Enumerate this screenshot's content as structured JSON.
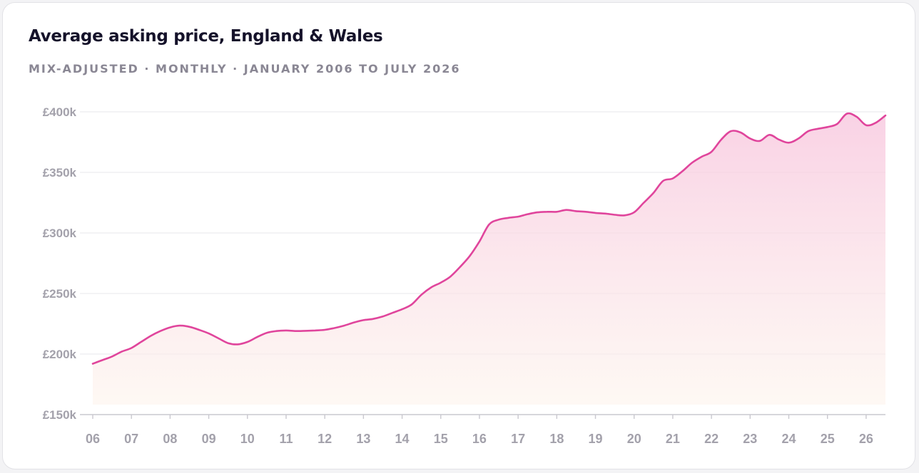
{
  "header": {
    "title": "Average asking price, England & Wales",
    "subtitle": "MIX-ADJUSTED · MONTHLY · JANUARY 2006 TO JULY 2026"
  },
  "colors": {
    "line": "#e0459c",
    "fill_top": "#f7c3dc",
    "fill_bottom": "#fdf4ec",
    "grid": "#ececef",
    "axis": "#c9c8cf",
    "label": "#a3a1ab"
  },
  "chart_data": {
    "type": "area",
    "title": "Average asking price, England & Wales",
    "subtitle": "MIX-ADJUSTED · MONTHLY · JANUARY 2006 TO JULY 2026",
    "xlabel": "",
    "ylabel": "",
    "xlim": [
      2006,
      2026.5
    ],
    "ylim": [
      150000,
      400000
    ],
    "yticks": [
      400000,
      350000,
      300000,
      250000,
      200000,
      150000
    ],
    "ytick_labels": [
      "£400k",
      "£350k",
      "£300k",
      "£250k",
      "£200k",
      "£150k"
    ],
    "xticks": [
      2006,
      2007,
      2008,
      2009,
      2010,
      2011,
      2012,
      2013,
      2014,
      2015,
      2016,
      2017,
      2018,
      2019,
      2020,
      2021,
      2022,
      2023,
      2024,
      2025,
      2026
    ],
    "xtick_labels": [
      "06",
      "07",
      "08",
      "09",
      "10",
      "11",
      "12",
      "13",
      "14",
      "15",
      "16",
      "17",
      "18",
      "19",
      "20",
      "21",
      "22",
      "23",
      "24",
      "25",
      "26"
    ],
    "grid": true,
    "series": [
      {
        "x": [
          2006.0,
          2006.25,
          2006.5,
          2006.75,
          2007.0,
          2007.25,
          2007.5,
          2007.75,
          2008.0,
          2008.25,
          2008.5,
          2008.75,
          2009.0,
          2009.25,
          2009.5,
          2009.75,
          2010.0,
          2010.25,
          2010.5,
          2010.75,
          2011.0,
          2011.25,
          2011.5,
          2011.75,
          2012.0,
          2012.25,
          2012.5,
          2012.75,
          2013.0,
          2013.25,
          2013.5,
          2013.75,
          2014.0,
          2014.25,
          2014.5,
          2014.75,
          2015.0,
          2015.25,
          2015.5,
          2015.75,
          2016.0,
          2016.25,
          2016.5,
          2016.75,
          2017.0,
          2017.25,
          2017.5,
          2017.75,
          2018.0,
          2018.25,
          2018.5,
          2018.75,
          2019.0,
          2019.25,
          2019.5,
          2019.75,
          2020.0,
          2020.25,
          2020.5,
          2020.75,
          2021.0,
          2021.25,
          2021.5,
          2021.75,
          2022.0,
          2022.25,
          2022.5,
          2022.75,
          2023.0,
          2023.25,
          2023.5,
          2023.75,
          2024.0,
          2024.25,
          2024.5,
          2024.75,
          2025.0,
          2025.25,
          2025.5,
          2025.75,
          2026.0,
          2026.25,
          2026.5
        ],
        "values": [
          192000,
          195000,
          198000,
          202000,
          205000,
          210000,
          215000,
          219000,
          222000,
          223500,
          222500,
          220000,
          217000,
          213000,
          209000,
          208000,
          210000,
          214000,
          217500,
          219000,
          219500,
          219000,
          219200,
          219500,
          220000,
          221500,
          223500,
          226000,
          228000,
          229000,
          231000,
          234000,
          237000,
          241000,
          249000,
          255000,
          259000,
          264000,
          272000,
          281000,
          293000,
          307000,
          311000,
          312500,
          313500,
          315500,
          317000,
          317500,
          317500,
          319000,
          318000,
          317500,
          316500,
          316000,
          315000,
          314500,
          317000,
          325000,
          333000,
          343000,
          345000,
          351000,
          358000,
          363000,
          367000,
          377000,
          384000,
          383000,
          378000,
          376000,
          381000,
          377000,
          374500,
          378000,
          384000,
          386000,
          387500,
          390000,
          398500,
          396000,
          389000,
          391000,
          397000
        ]
      }
    ]
  }
}
